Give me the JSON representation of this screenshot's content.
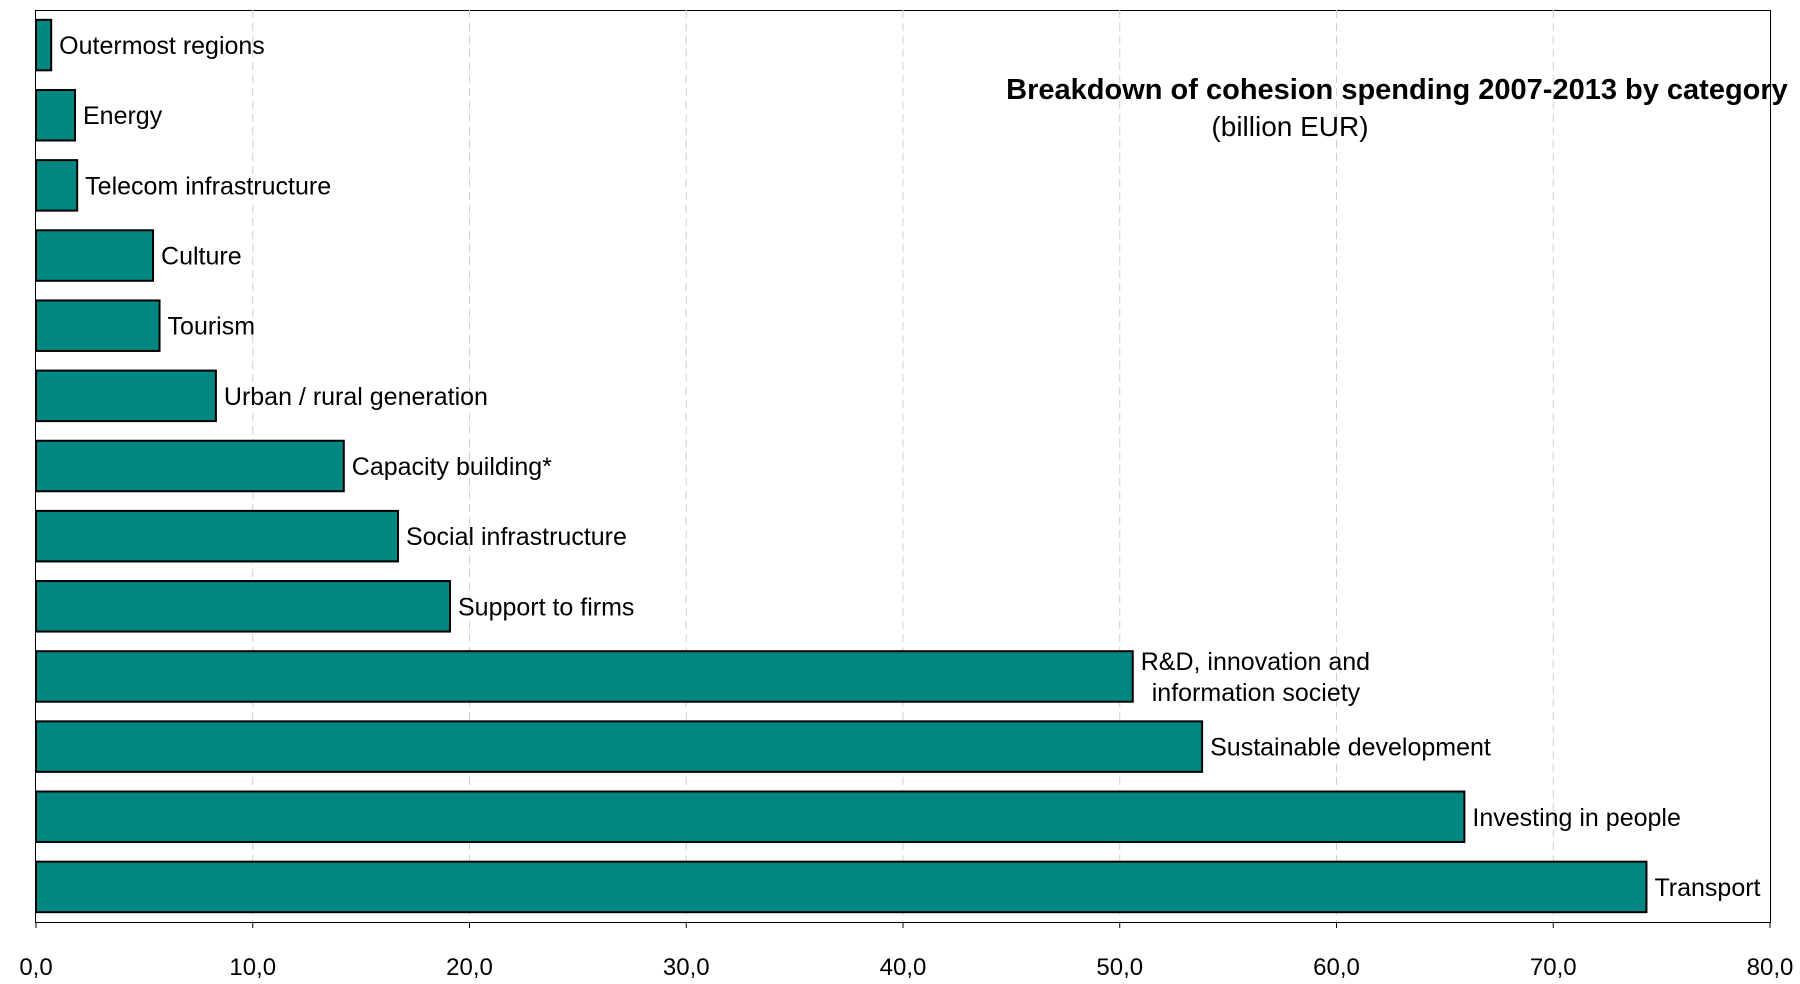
{
  "chart_data": {
    "type": "bar",
    "orientation": "horizontal",
    "title": "Breakdown of cohesion spending 2007-2013 by category",
    "subtitle": "(billion EUR)",
    "xlabel": "",
    "ylabel": "",
    "xlim": [
      0,
      80
    ],
    "x_ticks": [
      "0,0",
      "10,0",
      "20,0",
      "30,0",
      "40,0",
      "50,0",
      "60,0",
      "70,0",
      "80,0"
    ],
    "grid": "vertical dashed",
    "bar_color": "#008782",
    "categories": [
      [
        "Outermost regions"
      ],
      [
        "Energy"
      ],
      [
        "Telecom infrastructure"
      ],
      [
        "Culture"
      ],
      [
        "Tourism"
      ],
      [
        "Urban / rural generation"
      ],
      [
        "Capacity building*"
      ],
      [
        "Social infrastructure"
      ],
      [
        "Support to firms"
      ],
      [
        "R&D, innovation and",
        "information society"
      ],
      [
        "Sustainable development"
      ],
      [
        "Investing in people"
      ],
      [
        "Transport"
      ]
    ],
    "values": [
      0.7,
      1.8,
      1.9,
      5.4,
      5.7,
      8.3,
      14.2,
      16.7,
      19.1,
      50.6,
      53.8,
      65.9,
      74.3
    ]
  }
}
